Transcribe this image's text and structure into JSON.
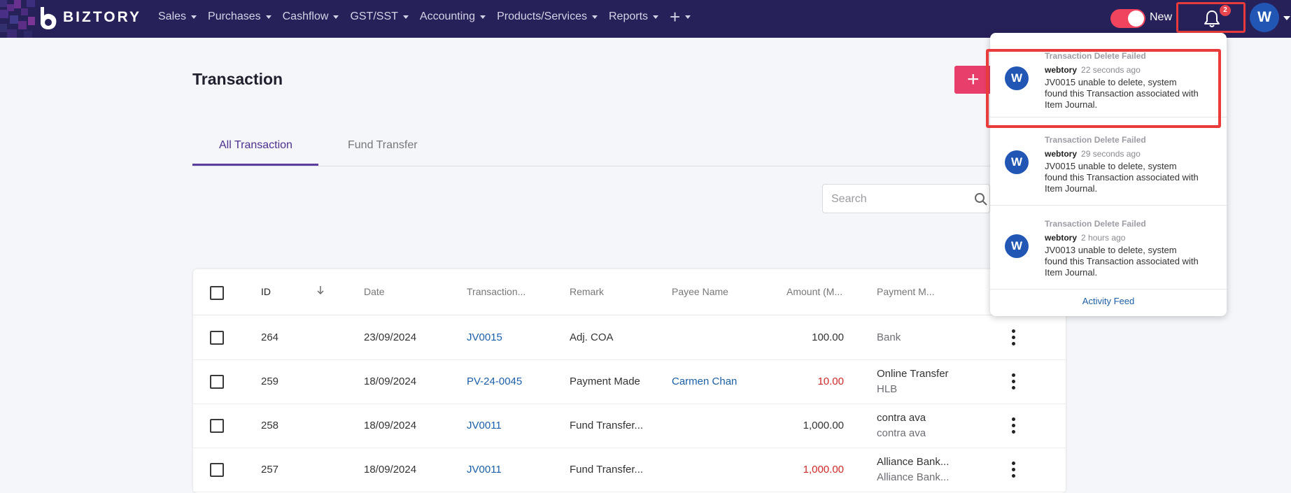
{
  "app": {
    "logo_text": "BIZTORY"
  },
  "nav": {
    "items": [
      {
        "label": "Sales"
      },
      {
        "label": "Purchases"
      },
      {
        "label": "Cashflow"
      },
      {
        "label": "GST/SST"
      },
      {
        "label": "Accounting"
      },
      {
        "label": "Products/Services"
      },
      {
        "label": "Reports"
      }
    ],
    "toggle_label": "New",
    "notification_count": "2",
    "user_initial": "W"
  },
  "page": {
    "title": "Transaction",
    "add_button_label": "+",
    "tabs": [
      {
        "label": "All Transaction"
      },
      {
        "label": "Fund Transfer"
      }
    ],
    "search_placeholder": "Search"
  },
  "table": {
    "columns": [
      "ID",
      "Date",
      "Transaction...",
      "Remark",
      "Payee Name",
      "Amount (M...",
      "Payment M..."
    ],
    "rows": [
      {
        "id": "264",
        "date": "23/09/2024",
        "transaction": "JV0015",
        "remark": "Adj. COA",
        "payee": "",
        "amount": "100.00",
        "payment_line1": "Bank",
        "payment_line2": ""
      },
      {
        "id": "259",
        "date": "18/09/2024",
        "transaction": "PV-24-0045",
        "remark": "Payment Made",
        "payee": "Carmen Chan",
        "amount": "10.00",
        "payment_line1": "Online Transfer",
        "payment_line2": "HLB"
      },
      {
        "id": "258",
        "date": "18/09/2024",
        "transaction": "JV0011",
        "remark": "Fund Transfer...",
        "payee": "",
        "amount": "1,000.00",
        "payment_line1": "contra ava",
        "payment_line2": "contra ava"
      },
      {
        "id": "257",
        "date": "18/09/2024",
        "transaction": "JV0011",
        "remark": "Fund Transfer...",
        "payee": "",
        "amount": "1,000.00",
        "payment_line1": "Alliance Bank...",
        "payment_line2": "Alliance Bank..."
      }
    ]
  },
  "notifications": {
    "items": [
      {
        "avatar": "W",
        "title": "Transaction Delete Failed",
        "user": "webtory",
        "time": "22 seconds ago",
        "message": "JV0015 unable to delete, system found this Transaction associated with Item Journal."
      },
      {
        "avatar": "W",
        "title": "Transaction Delete Failed",
        "user": "webtory",
        "time": "29 seconds ago",
        "message": "JV0015 unable to delete, system found this Transaction associated with Item Journal."
      },
      {
        "avatar": "W",
        "title": "Transaction Delete Failed",
        "user": "webtory",
        "time": "2 hours ago",
        "message": "JV0013 unable to delete, system found this Transaction associated with Item Journal."
      }
    ],
    "footer_link": "Activity Feed"
  },
  "colors": {
    "topbar": "#27215a",
    "accent": "#e83e6b",
    "link": "#1b5fa8",
    "negative": "#d02828",
    "highlight": "#ea3b3b"
  }
}
